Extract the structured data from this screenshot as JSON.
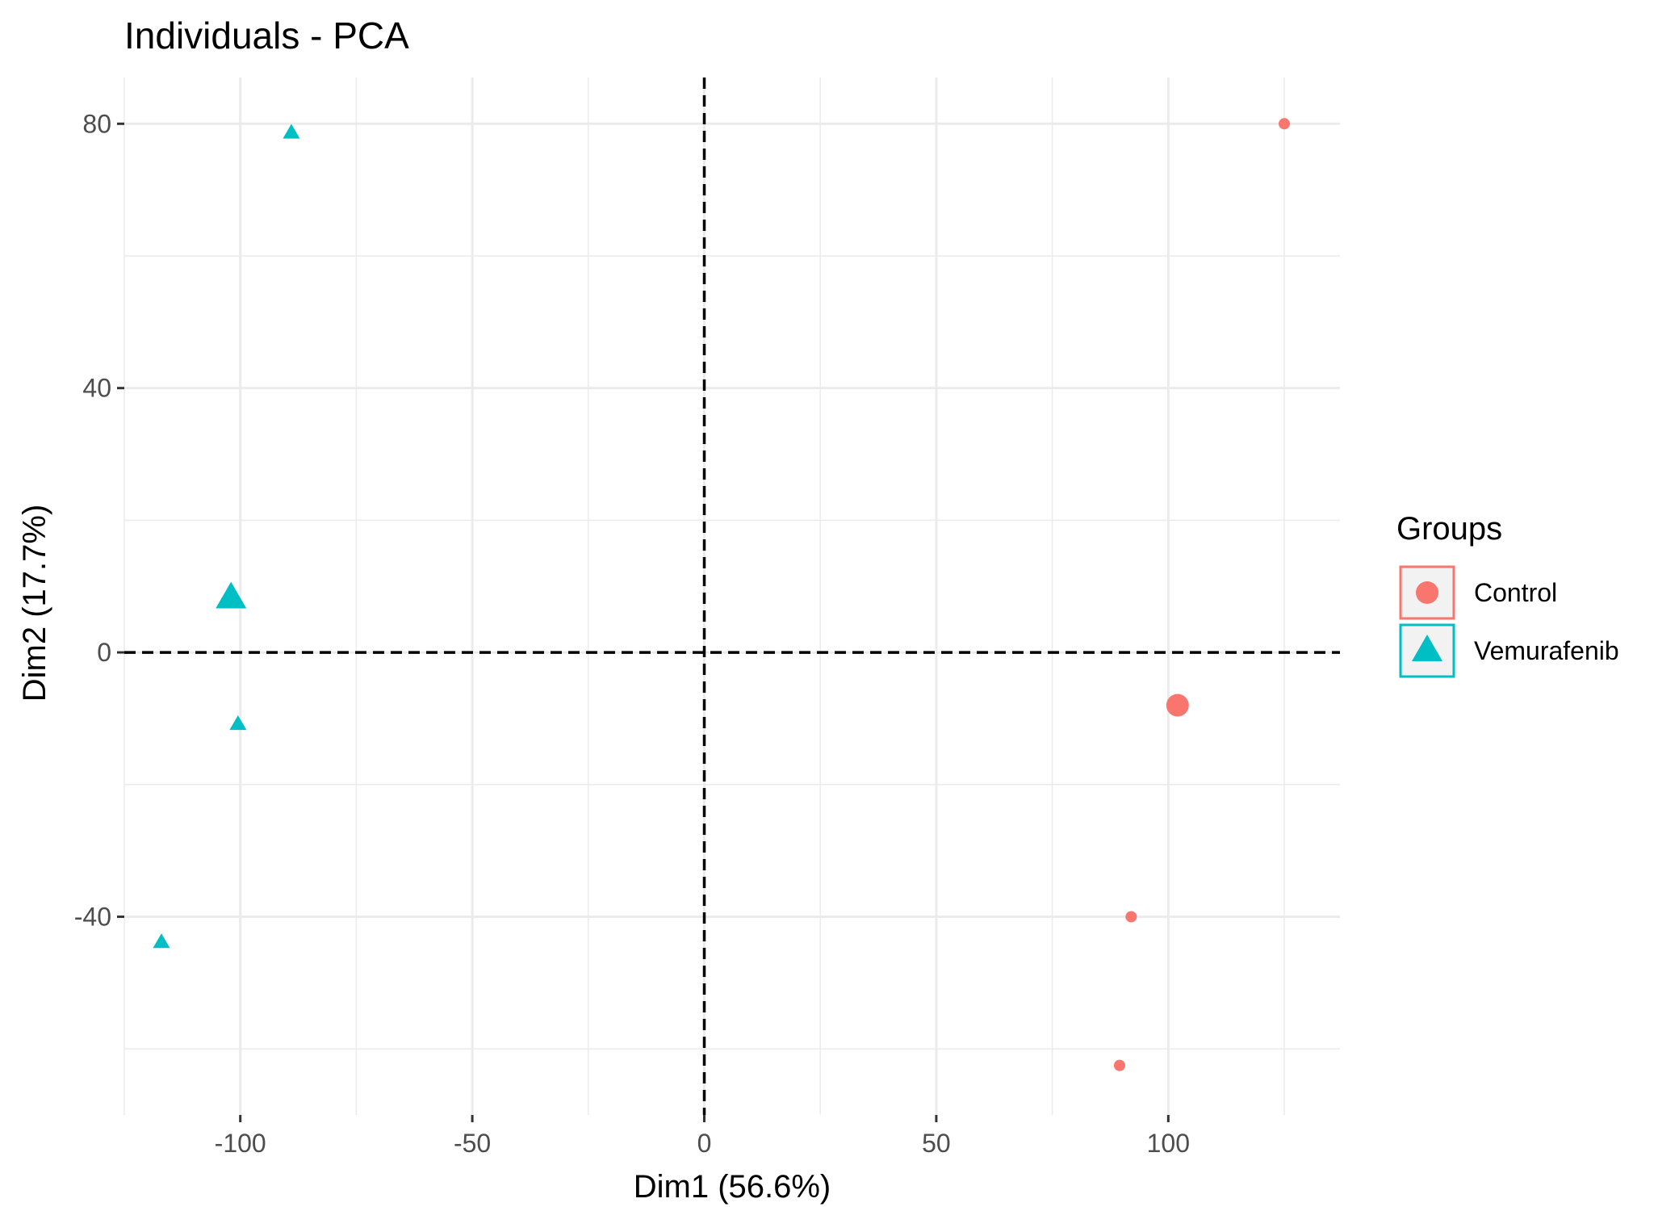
{
  "chart_data": {
    "type": "scatter",
    "title": "Individuals - PCA",
    "xlabel": "Dim1 (56.6%)",
    "ylabel": "Dim2 (17.7%)",
    "xlim": [
      -125,
      137
    ],
    "ylim": [
      -70,
      87
    ],
    "x_ticks": [
      -100,
      -50,
      0,
      50,
      100
    ],
    "x_tick_labels": [
      "-100",
      "-50",
      "0",
      "50",
      "100"
    ],
    "y_ticks": [
      -40,
      0,
      40,
      80
    ],
    "y_tick_labels": [
      "-40",
      "0",
      "40",
      "80"
    ],
    "grid": true,
    "reference_lines": {
      "x": 0,
      "y": 0,
      "style": "dashed"
    },
    "legend": {
      "title": "Groups",
      "position": "right",
      "entries": [
        {
          "label": "Control",
          "shape": "circle",
          "color": "#F8766D"
        },
        {
          "label": "Vemurafenib",
          "shape": "triangle",
          "color": "#00BFC4"
        }
      ]
    },
    "series": [
      {
        "name": "Control",
        "color": "#F8766D",
        "shape": "circle",
        "points": [
          {
            "x": 125,
            "y": 80
          },
          {
            "x": 92,
            "y": -40
          },
          {
            "x": 89.5,
            "y": -62.5
          }
        ],
        "centroid": {
          "x": 102,
          "y": -8
        }
      },
      {
        "name": "Vemurafenib",
        "color": "#00BFC4",
        "shape": "triangle",
        "points": [
          {
            "x": -89,
            "y": 78.5
          },
          {
            "x": -100.5,
            "y": -11
          },
          {
            "x": -117,
            "y": -44
          }
        ],
        "centroid": {
          "x": -102,
          "y": 8
        }
      }
    ]
  }
}
